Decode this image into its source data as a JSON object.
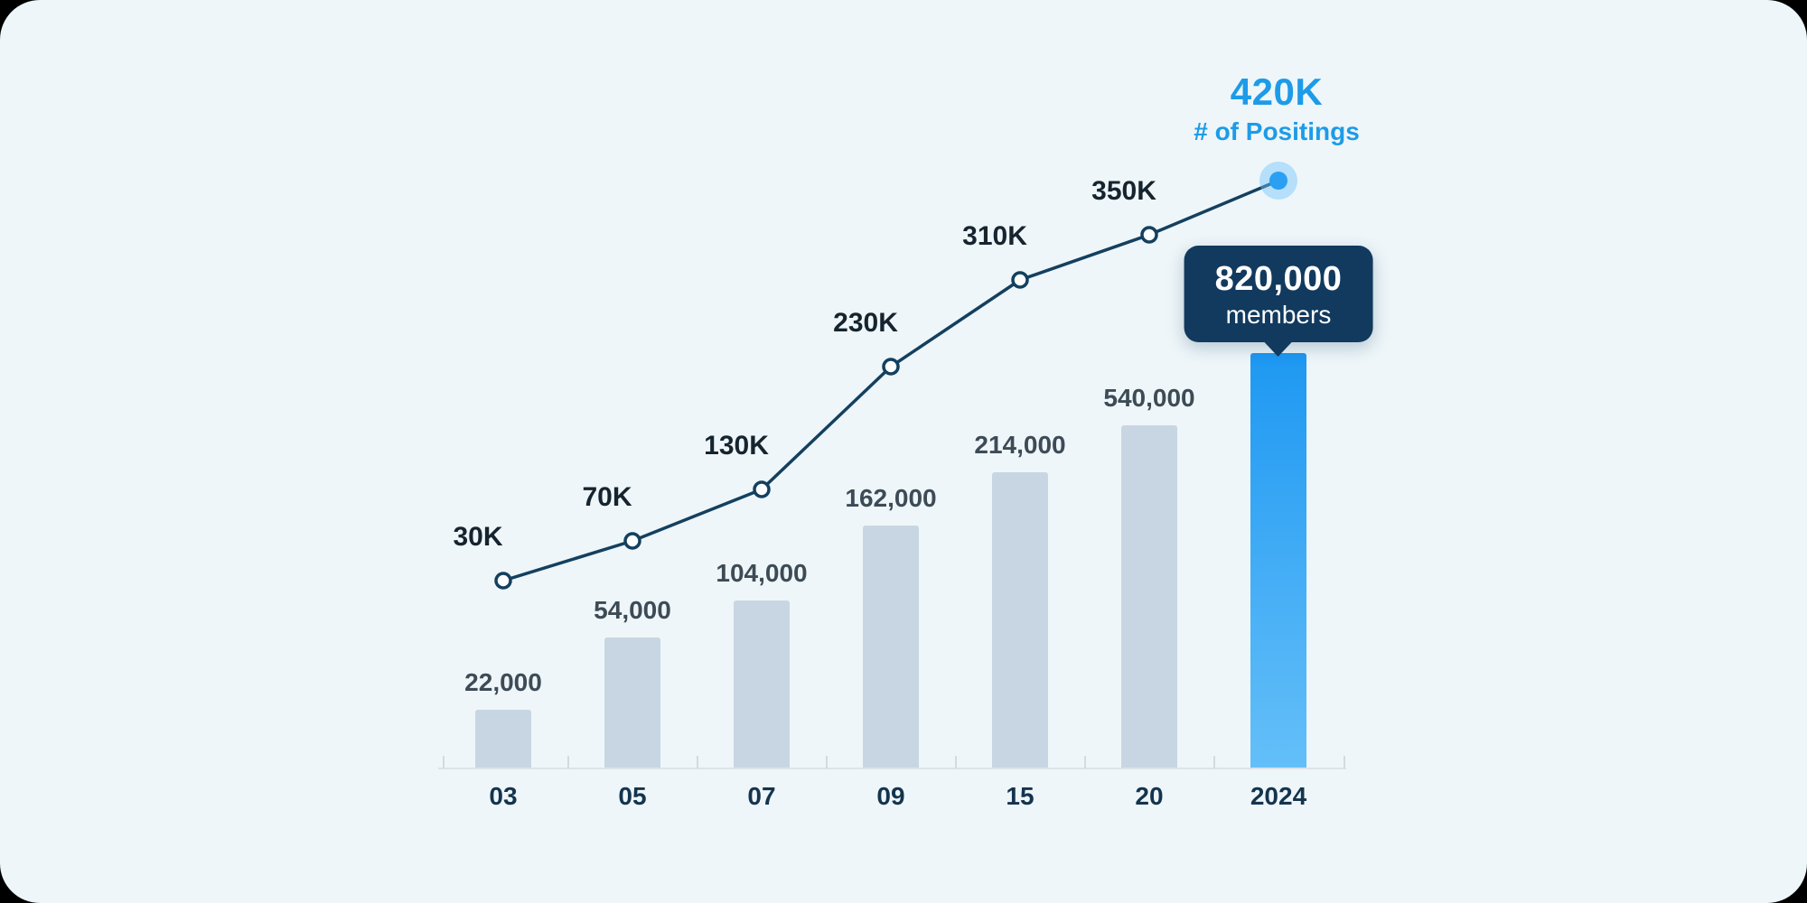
{
  "chart_data": {
    "type": "bar",
    "subtype": "combo-bar-line",
    "categories": [
      "03",
      "05",
      "07",
      "09",
      "15",
      "20",
      "2024"
    ],
    "series": [
      {
        "name": "members",
        "type": "bar",
        "values": [
          22000,
          54000,
          104000,
          162000,
          214000,
          540000,
          820000
        ],
        "labels": [
          "22,000",
          "54,000",
          "104,000",
          "162,000",
          "214,000",
          "540,000",
          "820,000"
        ]
      },
      {
        "name": "postings",
        "type": "line",
        "values": [
          30000,
          70000,
          130000,
          230000,
          310000,
          350000,
          420000
        ],
        "labels": [
          "30K",
          "70K",
          "130K",
          "230K",
          "310K",
          "350K",
          "420K"
        ]
      }
    ],
    "highlight": {
      "category": "2024",
      "bar_label": "820,000",
      "bar_sublabel": "members",
      "line_label": "420K",
      "line_sublabel": "# of Positings"
    },
    "legend": "none",
    "grid": "off",
    "colors": {
      "background": "#eef6f9",
      "bar": "#c7d6e2",
      "bar_highlight": "#2b9ff2",
      "line": "#14405f",
      "accent_blue": "#1d9be8",
      "tooltip_bg": "#113a5e",
      "axis": "#dde3e8",
      "bar_label": "#3d4b56",
      "category_label": "#14344e"
    }
  }
}
